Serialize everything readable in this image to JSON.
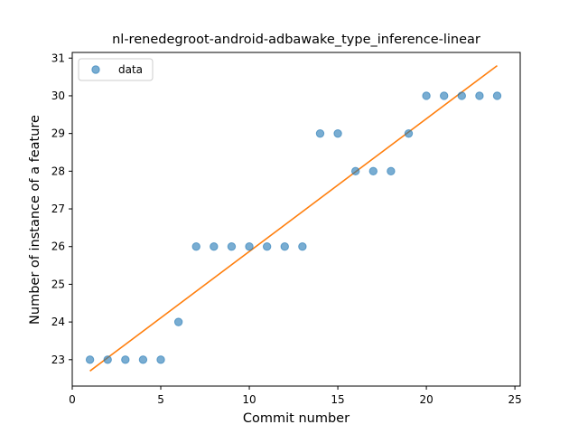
{
  "chart_data": {
    "type": "scatter",
    "title": "nl-renedegroot-android-adbawake_type_inference-linear",
    "xlabel": "Commit number",
    "ylabel": "Number of instance of a feature",
    "xlim": [
      0,
      25.3
    ],
    "ylim": [
      22.3,
      31.15
    ],
    "xticks": [
      0,
      5,
      10,
      15,
      20,
      25
    ],
    "yticks": [
      23,
      24,
      25,
      26,
      27,
      28,
      29,
      30,
      31
    ],
    "grid": false,
    "legend": {
      "placement": "top-left",
      "entries": [
        "data"
      ]
    },
    "series": [
      {
        "name": "data",
        "kind": "scatter",
        "color": "#1f77b4",
        "x": [
          1,
          2,
          3,
          4,
          5,
          6,
          7,
          8,
          9,
          10,
          11,
          12,
          13,
          14,
          15,
          16,
          17,
          18,
          19,
          20,
          21,
          22,
          23,
          24
        ],
        "y": [
          23,
          23,
          23,
          23,
          23,
          24,
          26,
          26,
          26,
          26,
          26,
          26,
          26,
          29,
          29,
          28,
          28,
          28,
          29,
          30,
          30,
          30,
          30,
          30
        ]
      },
      {
        "kind": "line",
        "color": "#ff7f0e",
        "x": [
          1,
          24
        ],
        "y": [
          22.7,
          30.8
        ]
      }
    ]
  }
}
